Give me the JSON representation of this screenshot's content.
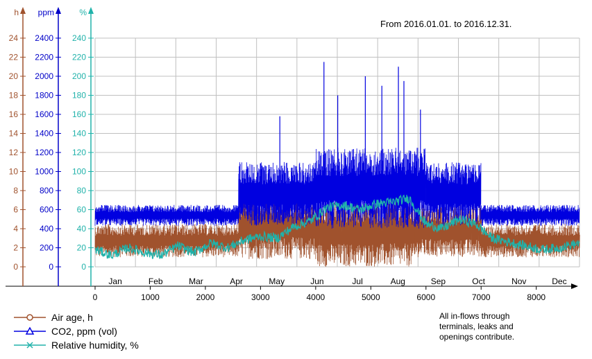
{
  "range_note": "From 2016.01.01. to 2016.12.31.",
  "side_note": [
    "All in-flows through",
    "terminals, leaks and",
    "openings contribute."
  ],
  "colors": {
    "air_age": "#a0522d",
    "co2": "#0000e0",
    "humidity": "#20b2aa",
    "grid": "#c0c0c0",
    "axis": "#000000"
  },
  "chart_data": {
    "type": "line",
    "x_axis": {
      "ticks": [
        0,
        1000,
        2000,
        3000,
        4000,
        5000,
        6000,
        7000,
        8000
      ],
      "range": [
        0,
        8784
      ],
      "months": [
        "Jan",
        "Feb",
        "Mar",
        "Apr",
        "May",
        "Jun",
        "Jul",
        "Aug",
        "Sep",
        "Oct",
        "Nov",
        "Dec"
      ]
    },
    "y_axes": [
      {
        "id": "h",
        "label": "h",
        "color": "#a0522d",
        "range": [
          0,
          24
        ],
        "ticks": [
          0,
          2,
          4,
          6,
          8,
          10,
          12,
          14,
          16,
          18,
          20,
          22,
          24
        ]
      },
      {
        "id": "ppm",
        "label": "ppm",
        "color": "#0000c8",
        "range": [
          0,
          2400
        ],
        "ticks": [
          0,
          200,
          400,
          600,
          800,
          1000,
          1200,
          1400,
          1600,
          1800,
          2000,
          2200,
          2400
        ]
      },
      {
        "id": "pct",
        "label": "%",
        "color": "#20b2aa",
        "range": [
          0,
          240
        ],
        "ticks": [
          0,
          20,
          40,
          60,
          80,
          100,
          120,
          140,
          160,
          180,
          200,
          220,
          240
        ]
      }
    ],
    "series": [
      {
        "name": "Air age, h",
        "axis": "h",
        "color": "#a0522d",
        "marker": "circle",
        "segments": [
          {
            "x": [
              0,
              2600
            ],
            "low": 1,
            "high": 4.5
          },
          {
            "x": [
              2600,
              4000
            ],
            "low": 0.8,
            "high": 7.5
          },
          {
            "x": [
              4000,
              5800
            ],
            "low": 0,
            "high": 7
          },
          {
            "x": [
              5800,
              7000
            ],
            "low": 1,
            "high": 6.5
          },
          {
            "x": [
              7000,
              8784
            ],
            "low": 1,
            "high": 4.5
          }
        ]
      },
      {
        "name": "CO2, ppm (vol)",
        "axis": "ppm",
        "color": "#0000e0",
        "marker": "triangle",
        "segments": [
          {
            "x": [
              0,
              2600
            ],
            "low": 430,
            "high": 650
          },
          {
            "x": [
              2600,
              4000
            ],
            "low": 430,
            "high": 1100
          },
          {
            "x": [
              4000,
              6000
            ],
            "low": 400,
            "high": 1250
          },
          {
            "x": [
              6000,
              7000
            ],
            "low": 430,
            "high": 1100
          },
          {
            "x": [
              7000,
              8784
            ],
            "low": 430,
            "high": 650
          }
        ],
        "peaks": [
          {
            "x": 3350,
            "y": 1580
          },
          {
            "x": 4150,
            "y": 2150
          },
          {
            "x": 4400,
            "y": 1800
          },
          {
            "x": 4900,
            "y": 2000
          },
          {
            "x": 5200,
            "y": 1900
          },
          {
            "x": 5500,
            "y": 2100
          },
          {
            "x": 5600,
            "y": 1950
          },
          {
            "x": 5900,
            "y": 1650
          }
        ]
      },
      {
        "name": "Relative humidity, %",
        "axis": "pct",
        "color": "#20b2aa",
        "marker": "x",
        "x": [
          0,
          300,
          600,
          900,
          1200,
          1500,
          1800,
          2100,
          2400,
          2700,
          3000,
          3300,
          3600,
          3900,
          4200,
          4500,
          4800,
          5100,
          5400,
          5700,
          6000,
          6300,
          6600,
          6900,
          7200,
          7500,
          7800,
          8100,
          8400,
          8784
        ],
        "y": [
          18,
          12,
          20,
          15,
          12,
          22,
          15,
          25,
          20,
          28,
          32,
          30,
          42,
          48,
          62,
          65,
          60,
          66,
          68,
          72,
          45,
          40,
          50,
          45,
          30,
          26,
          22,
          18,
          20,
          25
        ]
      }
    ]
  }
}
